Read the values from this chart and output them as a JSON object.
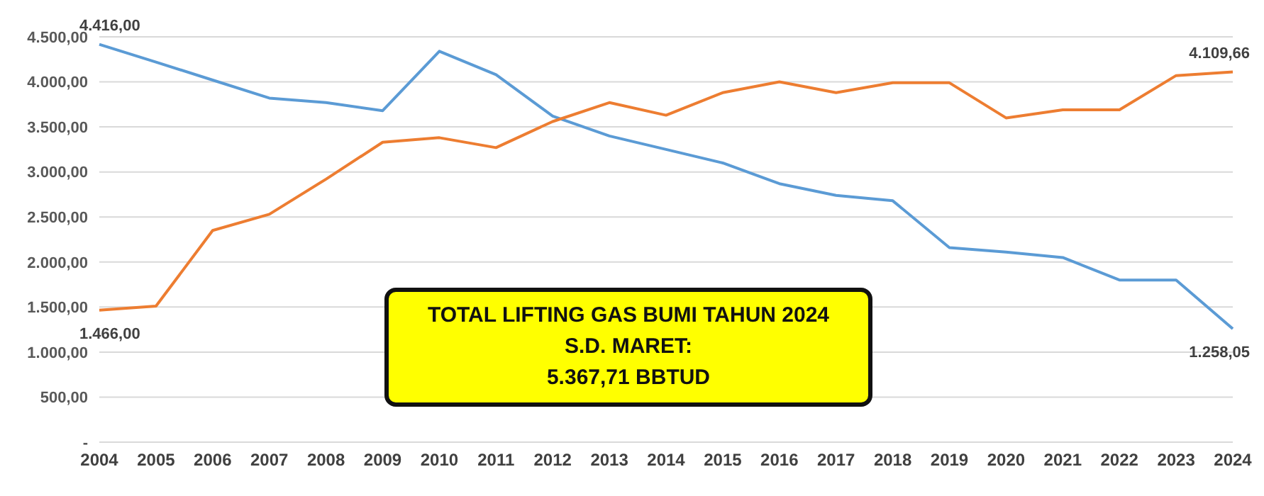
{
  "chart_data": {
    "type": "line",
    "categories": [
      "2004",
      "2005",
      "2006",
      "2007",
      "2008",
      "2009",
      "2010",
      "2011",
      "2012",
      "2013",
      "2014",
      "2015",
      "2016",
      "2017",
      "2018",
      "2019",
      "2020",
      "2021",
      "2022",
      "2023",
      "2024"
    ],
    "series": [
      {
        "color": "#5b9bd5",
        "values": [
          4416,
          4220,
          4020,
          3820,
          3770,
          3680,
          4340,
          4080,
          3620,
          3400,
          3250,
          3100,
          2870,
          2740,
          2680,
          2160,
          2110,
          2050,
          1800,
          1800,
          1258.05
        ],
        "value_labels": [
          "4.416,00",
          null,
          null,
          null,
          null,
          null,
          null,
          null,
          null,
          null,
          null,
          null,
          null,
          null,
          null,
          null,
          null,
          null,
          null,
          null,
          "1.258,05"
        ]
      },
      {
        "color": "#ed7d31",
        "values": [
          1466,
          1510,
          2350,
          2530,
          2920,
          3330,
          3380,
          3270,
          3560,
          3770,
          3630,
          3880,
          4000,
          3880,
          3990,
          3990,
          3600,
          3690,
          3690,
          4070,
          4109.66
        ],
        "value_labels": [
          "1.466,00",
          null,
          null,
          null,
          null,
          null,
          null,
          null,
          null,
          null,
          null,
          null,
          null,
          null,
          null,
          null,
          null,
          null,
          null,
          null,
          "4.109,66"
        ]
      }
    ],
    "ylim": [
      0,
      4500
    ],
    "yticks": [
      {
        "value": 0,
        "label": "-"
      },
      {
        "value": 500,
        "label": "500,00"
      },
      {
        "value": 1000,
        "label": "1.000,00"
      },
      {
        "value": 1500,
        "label": "1.500,00"
      },
      {
        "value": 2000,
        "label": "2.000,00"
      },
      {
        "value": 2500,
        "label": "2.500,00"
      },
      {
        "value": 3000,
        "label": "3.000,00"
      },
      {
        "value": 3500,
        "label": "3.500,00"
      },
      {
        "value": 4000,
        "label": "4.000,00"
      },
      {
        "value": 4500,
        "label": "4.500,00"
      }
    ],
    "grid": "y",
    "legend": false,
    "marker": "none",
    "line_style": "solid",
    "annotations": [
      "TOTAL LIFTING GAS BUMI TAHUN 2024\nS.D. MARET:\n5.367,71 BBTUD"
    ]
  }
}
